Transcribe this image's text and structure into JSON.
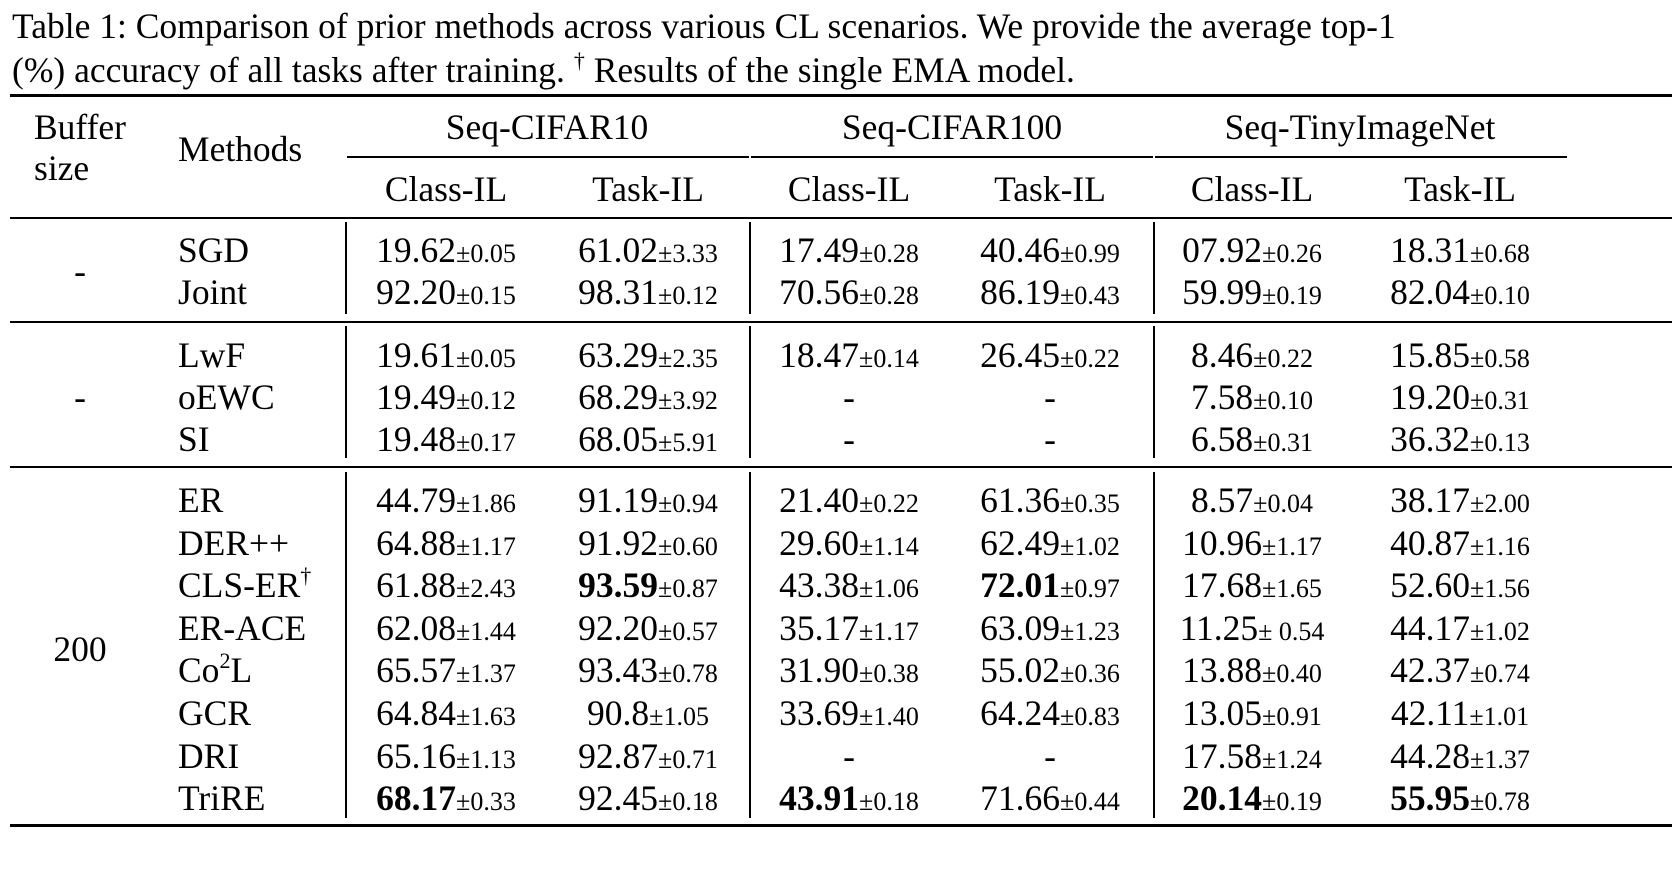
{
  "caption": {
    "label": "Table 1:",
    "text": "Comparison of prior methods across various CL scenarios. We provide the average top-1",
    "text2": "(%) accuracy of all tasks after training.",
    "dagger": "†",
    "note": "Results of the single EMA model."
  },
  "header": {
    "buffer_line1": "Buffer",
    "buffer_line2": "size",
    "methods": "Methods",
    "datasets": [
      "Seq-CIFAR10",
      "Seq-CIFAR100",
      "Seq-TinyImageNet"
    ],
    "settings": [
      "Class-IL",
      "Task-IL",
      "Class-IL",
      "Task-IL",
      "Class-IL",
      "Task-IL"
    ]
  },
  "groups": [
    {
      "buffer": "-",
      "rows": [
        {
          "method": "SGD",
          "cells": [
            {
              "m": "19.62",
              "s": "0.05"
            },
            {
              "m": "61.02",
              "s": "3.33"
            },
            {
              "m": "17.49",
              "s": "0.28"
            },
            {
              "m": "40.46",
              "s": "0.99"
            },
            {
              "m": "07.92",
              "s": "0.26"
            },
            {
              "m": "18.31",
              "s": "0.68"
            }
          ]
        },
        {
          "method": "Joint",
          "cells": [
            {
              "m": "92.20",
              "s": "0.15"
            },
            {
              "m": "98.31",
              "s": "0.12"
            },
            {
              "m": "70.56",
              "s": "0.28"
            },
            {
              "m": "86.19",
              "s": "0.43"
            },
            {
              "m": "59.99",
              "s": "0.19"
            },
            {
              "m": "82.04",
              "s": "0.10"
            }
          ]
        }
      ]
    },
    {
      "buffer": "-",
      "rows": [
        {
          "method": "LwF",
          "cells": [
            {
              "m": "19.61",
              "s": "0.05"
            },
            {
              "m": "63.29",
              "s": "2.35"
            },
            {
              "m": "18.47",
              "s": "0.14"
            },
            {
              "m": "26.45",
              "s": "0.22"
            },
            {
              "m": "8.46",
              "s": "0.22"
            },
            {
              "m": "15.85",
              "s": "0.58"
            }
          ]
        },
        {
          "method": "oEWC",
          "cells": [
            {
              "m": "19.49",
              "s": "0.12"
            },
            {
              "m": "68.29",
              "s": "3.92"
            },
            {
              "m": "-"
            },
            {
              "m": "-"
            },
            {
              "m": "7.58",
              "s": "0.10"
            },
            {
              "m": "19.20",
              "s": "0.31"
            }
          ]
        },
        {
          "method": "SI",
          "cells": [
            {
              "m": "19.48",
              "s": "0.17"
            },
            {
              "m": "68.05",
              "s": "5.91"
            },
            {
              "m": "-"
            },
            {
              "m": "-"
            },
            {
              "m": "6.58",
              "s": "0.31"
            },
            {
              "m": "36.32",
              "s": "0.13"
            }
          ]
        }
      ]
    },
    {
      "buffer": "200",
      "rows": [
        {
          "method": "ER",
          "cells": [
            {
              "m": "44.79",
              "s": "1.86"
            },
            {
              "m": "91.19",
              "s": "0.94"
            },
            {
              "m": "21.40",
              "s": "0.22"
            },
            {
              "m": "61.36",
              "s": "0.35"
            },
            {
              "m": "8.57",
              "s": "0.04"
            },
            {
              "m": "38.17",
              "s": "2.00"
            }
          ]
        },
        {
          "method": "DER++",
          "cells": [
            {
              "m": "64.88",
              "s": "1.17"
            },
            {
              "m": "91.92",
              "s": "0.60"
            },
            {
              "m": "29.60",
              "s": "1.14"
            },
            {
              "m": "62.49",
              "s": "1.02"
            },
            {
              "m": "10.96",
              "s": "1.17"
            },
            {
              "m": "40.87",
              "s": "1.16"
            }
          ]
        },
        {
          "method": "CLS-ER",
          "sup": "†",
          "cells": [
            {
              "m": "61.88",
              "s": "2.43"
            },
            {
              "m": "93.59",
              "s": "0.87",
              "bold": true
            },
            {
              "m": "43.38",
              "s": "1.06"
            },
            {
              "m": "72.01",
              "s": "0.97",
              "bold": true
            },
            {
              "m": "17.68",
              "s": "1.65"
            },
            {
              "m": "52.60",
              "s": "1.56"
            }
          ]
        },
        {
          "method": "ER-ACE",
          "cells": [
            {
              "m": "62.08",
              "s": "1.44"
            },
            {
              "m": "92.20",
              "s": "0.57"
            },
            {
              "m": "35.17",
              "s": "1.17"
            },
            {
              "m": "63.09",
              "s": "1.23"
            },
            {
              "m": "11.25",
              "s": " 0.54"
            },
            {
              "m": "44.17",
              "s": "1.02"
            }
          ]
        },
        {
          "method": "Co",
          "sup": "2",
          "method_tail": "L",
          "cells": [
            {
              "m": "65.57",
              "s": "1.37"
            },
            {
              "m": "93.43",
              "s": "0.78"
            },
            {
              "m": "31.90",
              "s": "0.38"
            },
            {
              "m": "55.02",
              "s": "0.36"
            },
            {
              "m": "13.88",
              "s": "0.40"
            },
            {
              "m": "42.37",
              "s": "0.74"
            }
          ]
        },
        {
          "method": "GCR",
          "cells": [
            {
              "m": "64.84",
              "s": "1.63"
            },
            {
              "m": "90.8",
              "s": "1.05"
            },
            {
              "m": "33.69",
              "s": "1.40"
            },
            {
              "m": "64.24",
              "s": "0.83"
            },
            {
              "m": "13.05",
              "s": "0.91"
            },
            {
              "m": "42.11",
              "s": "1.01"
            }
          ]
        },
        {
          "method": "DRI",
          "cells": [
            {
              "m": "65.16",
              "s": "1.13"
            },
            {
              "m": "92.87",
              "s": "0.71"
            },
            {
              "m": "-"
            },
            {
              "m": "-"
            },
            {
              "m": "17.58",
              "s": "1.24"
            },
            {
              "m": "44.28",
              "s": "1.37"
            }
          ]
        },
        {
          "method": "TriRE",
          "cells": [
            {
              "m": "68.17",
              "s": "0.33",
              "bold": true
            },
            {
              "m": "92.45",
              "s": "0.18"
            },
            {
              "m": "43.91",
              "s": "0.18",
              "bold": true
            },
            {
              "m": "71.66",
              "s": "0.44"
            },
            {
              "m": "20.14",
              "s": "0.19",
              "bold": true
            },
            {
              "m": "55.95",
              "s": "0.78",
              "bold": true
            }
          ]
        }
      ]
    }
  ],
  "pm_symbol": "±"
}
